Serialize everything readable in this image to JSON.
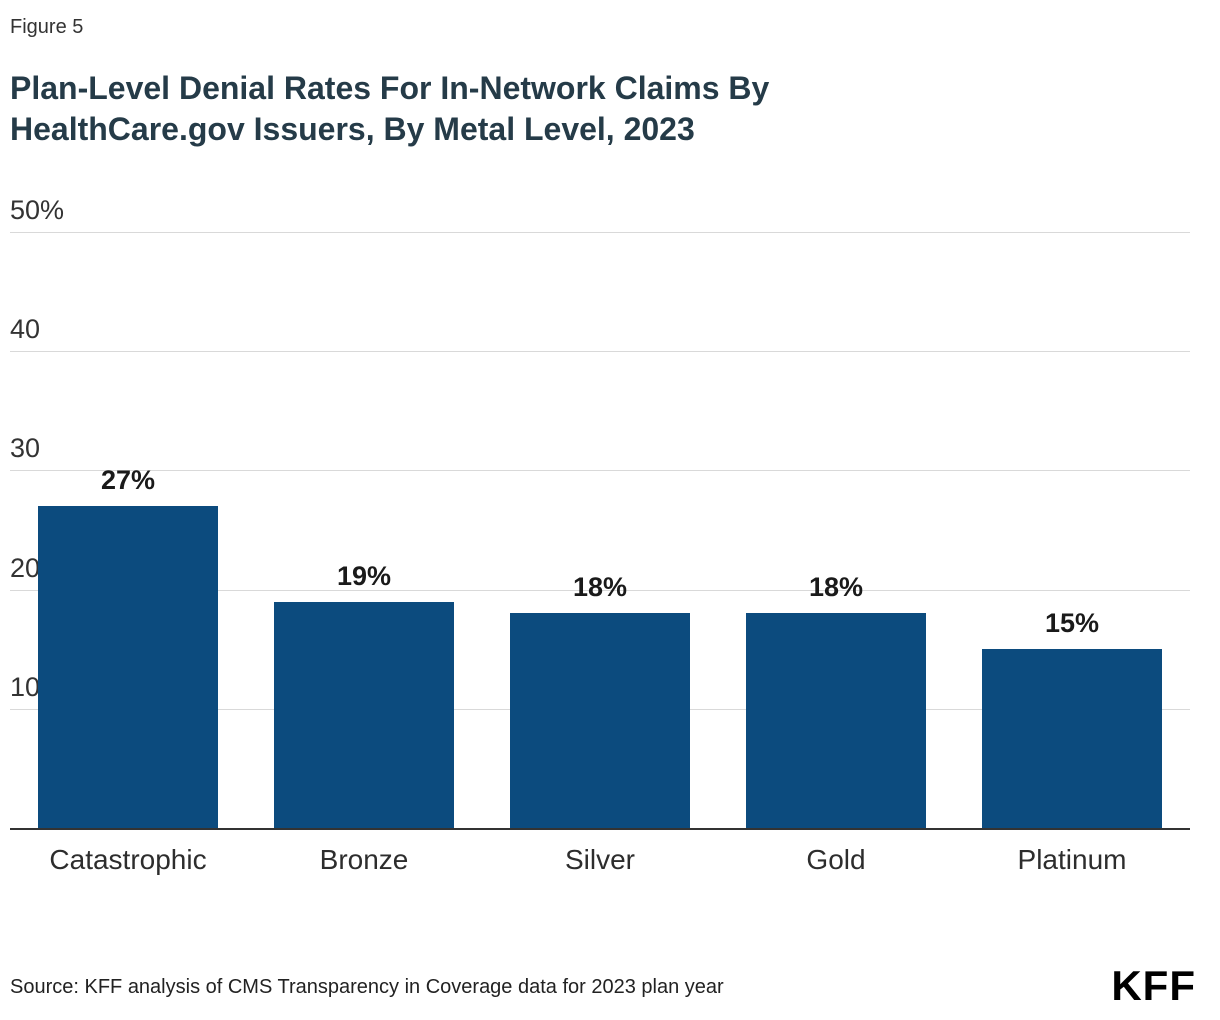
{
  "figure_label": "Figure 5",
  "title": "Plan-Level Denial Rates For In-Network Claims By HealthCare.gov Issuers, By Metal Level, 2023",
  "chart_data": {
    "type": "bar",
    "title": "Plan-Level Denial Rates For In-Network Claims By HealthCare.gov Issuers, By Metal Level, 2023",
    "categories": [
      "Catastrophic",
      "Bronze",
      "Silver",
      "Gold",
      "Platinum"
    ],
    "values": [
      27,
      19,
      18,
      18,
      15
    ],
    "value_labels": [
      "27%",
      "19%",
      "18%",
      "18%",
      "15%"
    ],
    "xlabel": "",
    "ylabel": "",
    "ylim": [
      0,
      50
    ],
    "yticks": [
      {
        "value": 50,
        "label": "50%"
      },
      {
        "value": 40,
        "label": "40"
      },
      {
        "value": 30,
        "label": "30"
      },
      {
        "value": 20,
        "label": "20"
      },
      {
        "value": 10,
        "label": "10"
      }
    ],
    "grid": true,
    "legend": "none",
    "bar_color": "#0c4b7e"
  },
  "source": "Source: KFF analysis of CMS Transparency in Coverage data for 2023 plan year",
  "logo": "KFF",
  "colors": {
    "bar": "#0c4b7e",
    "title_text": "#253b48",
    "grid": "#d9d9d9",
    "axis_line": "#333333",
    "tick_text": "#333333",
    "value_text": "#1a1a1a",
    "background": "#ffffff"
  }
}
